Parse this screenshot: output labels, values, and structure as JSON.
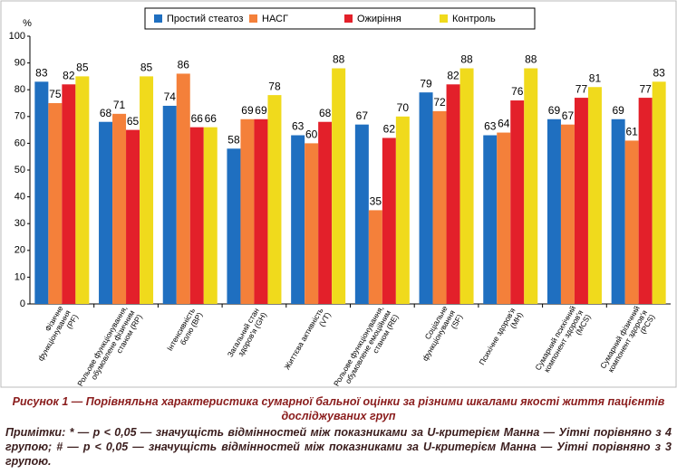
{
  "chart_data": {
    "type": "bar",
    "ylabel": "%",
    "categories": [
      "Фізичне\nфункціонування\n(PF)",
      "Рольове функціонування,\nобумовлене фізичним\nстаном (RP)",
      "Інтенсивність\nболю (BP)",
      "Загальний стан\nздоров'я (GH)",
      "Життєва активність\n(VT)",
      "Рольове функціонування,\nобумовлене емоційним\nстаном (RE)",
      "Соціальне\nфункціонування\n(SF)",
      "Психічне здоров'я\n(MH)",
      "Сумарний психічний\nкомпонент здоров'я\n(MCS)",
      "Сумарний фізичний\nкомпонент здоров'я\n(PCS)"
    ],
    "series": [
      {
        "name": "Простий стеатоз",
        "color": "#1f6fc0",
        "values": [
          83,
          68,
          74,
          58,
          63,
          67,
          79,
          63,
          69,
          69
        ]
      },
      {
        "name": "НАСГ",
        "color": "#f4803a",
        "values": [
          75,
          71,
          86,
          69,
          60,
          35,
          72,
          64,
          67,
          61
        ]
      },
      {
        "name": "Ожиріння",
        "color": "#e3202a",
        "values": [
          82,
          65,
          66,
          69,
          68,
          62,
          82,
          76,
          77,
          77
        ]
      },
      {
        "name": "Контроль",
        "color": "#f0da1c",
        "values": [
          85,
          85,
          66,
          78,
          88,
          70,
          88,
          88,
          81,
          83
        ]
      }
    ],
    "ylim": [
      0,
      100
    ],
    "yticks": [
      0,
      10,
      20,
      30,
      40,
      50,
      60,
      70,
      80,
      90,
      100
    ],
    "grid": false,
    "legend": "top"
  },
  "caption": "Рисунок 1 — Порівняльна характеристика сумарної бальної оцінки за різними шкалами якості життя пацієнтів досліджуваних груп",
  "note": "Примітки: * — p < 0,05 — значущість відмінностей між показниками за U-критерієм Манна — Уітні порівняно з 4 групою; # — p < 0,05 — значущість відмінностей між показниками за U-критерієм Манна — Уітні порівняно з 3 групою."
}
